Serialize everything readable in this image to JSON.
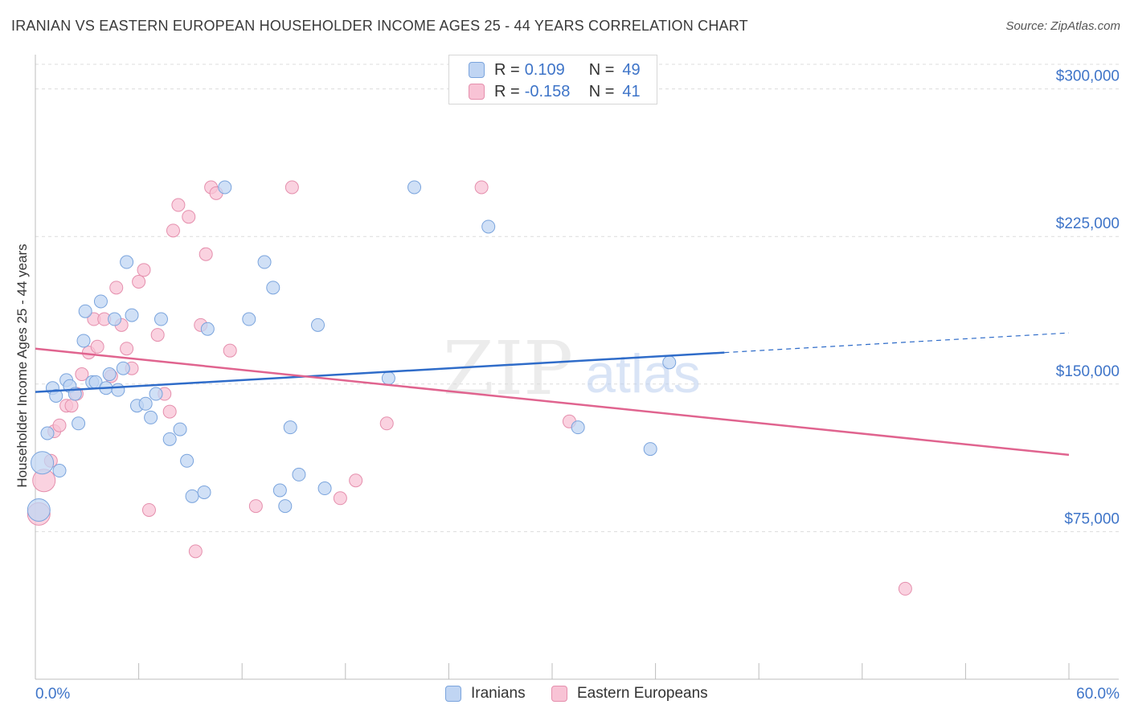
{
  "header": {
    "title": "IRANIAN VS EASTERN EUROPEAN HOUSEHOLDER INCOME AGES 25 - 44 YEARS CORRELATION CHART",
    "source": "Source: ZipAtlas.com"
  },
  "watermark": {
    "zip": "ZIP",
    "atlas": "atlas"
  },
  "legend_top": {
    "rows": [
      {
        "r_label": "R =",
        "r_value": "0.109",
        "n_label": "N =",
        "n_value": "49"
      },
      {
        "r_label": "R =",
        "r_value": "-0.158",
        "n_label": "N =",
        "n_value": "41"
      }
    ]
  },
  "legend_bottom": {
    "iranians": "Iranians",
    "eastern": "Eastern Europeans"
  },
  "colors": {
    "iranian_fill": "#c0d5f3",
    "iranian_stroke": "#7aa4dd",
    "iranian_line": "#2f6cc9",
    "eastern_fill": "#f8c3d5",
    "eastern_stroke": "#e58fad",
    "eastern_line": "#e0648f",
    "axis_text": "#3e74c8",
    "grid": "#dcdcdc"
  },
  "chart_data": {
    "type": "scatter",
    "title": "IRANIAN VS EASTERN EUROPEAN HOUSEHOLDER INCOME AGES 25 - 44 YEARS CORRELATION CHART",
    "xlabel": "",
    "ylabel": "Householder Income Ages 25 - 44 years",
    "xlim": [
      0,
      60
    ],
    "ylim": [
      0,
      312500
    ],
    "x_tick_labels": [
      "0.0%",
      "60.0%"
    ],
    "y_ticks": [
      75000,
      150000,
      225000,
      300000
    ],
    "y_tick_labels": [
      "$75,000",
      "$150,000",
      "$225,000",
      "$300,000"
    ],
    "grid": true,
    "legend": "bottom",
    "series": [
      {
        "name": "Iranians",
        "r": 0.109,
        "n": 49,
        "trend": {
          "x": [
            0,
            40
          ],
          "y": [
            146000,
            166000
          ],
          "dashed_to": [
            60,
            176000
          ]
        },
        "points": [
          [
            0.2,
            86000
          ],
          [
            0.4,
            110000
          ],
          [
            0.7,
            125000
          ],
          [
            1.0,
            148000
          ],
          [
            1.2,
            144000
          ],
          [
            1.4,
            106000
          ],
          [
            1.8,
            152000
          ],
          [
            2.0,
            149000
          ],
          [
            2.3,
            145000
          ],
          [
            2.5,
            130000
          ],
          [
            2.8,
            172000
          ],
          [
            2.9,
            187000
          ],
          [
            3.3,
            151000
          ],
          [
            3.5,
            151000
          ],
          [
            3.8,
            192000
          ],
          [
            4.1,
            148000
          ],
          [
            4.3,
            155000
          ],
          [
            4.6,
            183000
          ],
          [
            4.8,
            147000
          ],
          [
            5.1,
            158000
          ],
          [
            5.3,
            212000
          ],
          [
            5.6,
            185000
          ],
          [
            5.9,
            139000
          ],
          [
            6.4,
            140000
          ],
          [
            6.7,
            133000
          ],
          [
            7.0,
            145000
          ],
          [
            7.3,
            183000
          ],
          [
            7.8,
            122000
          ],
          [
            8.4,
            127000
          ],
          [
            8.8,
            111000
          ],
          [
            9.1,
            93000
          ],
          [
            9.8,
            95000
          ],
          [
            10.0,
            178000
          ],
          [
            11.0,
            250000
          ],
          [
            12.4,
            183000
          ],
          [
            13.3,
            212000
          ],
          [
            13.8,
            199000
          ],
          [
            14.2,
            96000
          ],
          [
            14.5,
            88000
          ],
          [
            14.8,
            128000
          ],
          [
            15.3,
            104000
          ],
          [
            16.4,
            180000
          ],
          [
            16.8,
            97000
          ],
          [
            20.5,
            153000
          ],
          [
            22.0,
            250000
          ],
          [
            26.3,
            230000
          ],
          [
            31.5,
            128000
          ],
          [
            35.7,
            117000
          ],
          [
            36.8,
            161000
          ]
        ]
      },
      {
        "name": "Eastern Europeans",
        "r": -0.158,
        "n": 41,
        "trend": {
          "x": [
            0,
            60
          ],
          "y": [
            168000,
            114000
          ]
        },
        "points": [
          [
            0.2,
            84000
          ],
          [
            0.5,
            101000
          ],
          [
            0.9,
            111000
          ],
          [
            1.1,
            126000
          ],
          [
            1.4,
            129000
          ],
          [
            1.8,
            139000
          ],
          [
            2.1,
            139000
          ],
          [
            2.4,
            145000
          ],
          [
            2.7,
            155000
          ],
          [
            3.1,
            166000
          ],
          [
            3.4,
            183000
          ],
          [
            3.6,
            169000
          ],
          [
            4.0,
            183000
          ],
          [
            4.4,
            154000
          ],
          [
            4.7,
            199000
          ],
          [
            5.0,
            180000
          ],
          [
            5.3,
            168000
          ],
          [
            5.6,
            158000
          ],
          [
            6.0,
            202000
          ],
          [
            6.3,
            208000
          ],
          [
            6.6,
            86000
          ],
          [
            7.1,
            175000
          ],
          [
            7.5,
            145000
          ],
          [
            7.8,
            136000
          ],
          [
            8.0,
            228000
          ],
          [
            8.3,
            241000
          ],
          [
            8.9,
            235000
          ],
          [
            9.3,
            65000
          ],
          [
            9.6,
            180000
          ],
          [
            9.9,
            216000
          ],
          [
            10.2,
            250000
          ],
          [
            10.5,
            247000
          ],
          [
            11.3,
            167000
          ],
          [
            12.8,
            88000
          ],
          [
            14.9,
            250000
          ],
          [
            17.7,
            92000
          ],
          [
            18.6,
            101000
          ],
          [
            20.4,
            130000
          ],
          [
            25.9,
            250000
          ],
          [
            31.0,
            131000
          ],
          [
            50.5,
            46000
          ]
        ]
      }
    ]
  }
}
